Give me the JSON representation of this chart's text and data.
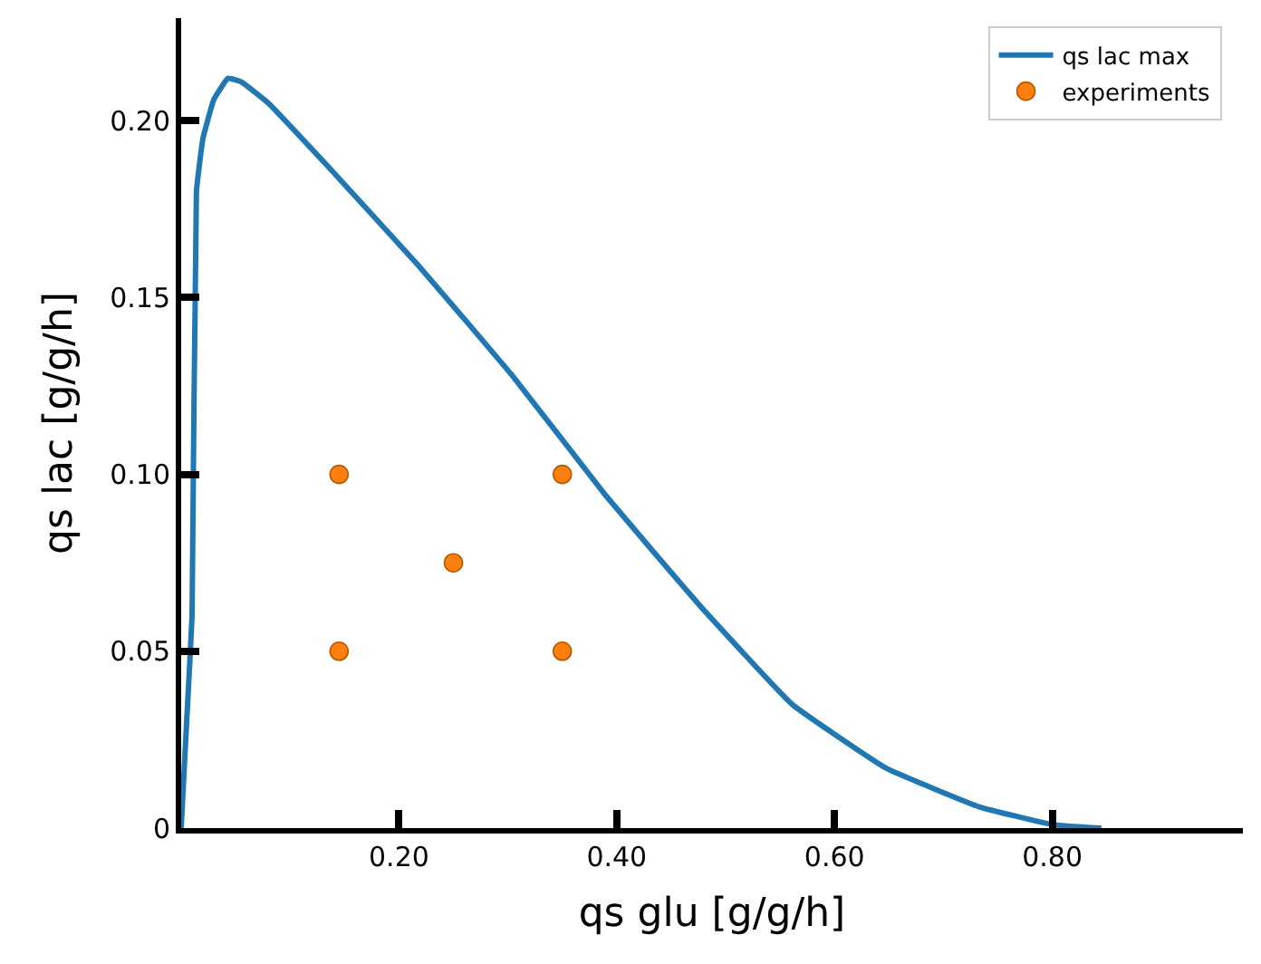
{
  "chart_data": {
    "type": "line",
    "xlabel": "qs glu [g/g/h]",
    "ylabel": "qs lac [g/g/h]",
    "xlim": [
      0,
      0.975
    ],
    "ylim": [
      0,
      0.229
    ],
    "xticks": [
      {
        "value": 0.2,
        "label": "0.20"
      },
      {
        "value": 0.4,
        "label": "0.40"
      },
      {
        "value": 0.6,
        "label": "0.60"
      },
      {
        "value": 0.8,
        "label": "0.80"
      }
    ],
    "yticks": [
      {
        "value": 0,
        "label": "0"
      },
      {
        "value": 0.05,
        "label": "0.05"
      },
      {
        "value": 0.1,
        "label": "0.10"
      },
      {
        "value": 0.15,
        "label": "0.15"
      },
      {
        "value": 0.2,
        "label": "0.20"
      }
    ],
    "legend": "top right",
    "series": [
      {
        "name": "qs lac max",
        "color": "#1f77b4",
        "marker": "none",
        "line_style": "solid",
        "x": [
          0,
          0.005,
          0.01,
          0.014,
          0.02,
          0.03,
          0.043,
          0.055,
          0.08,
          0.132,
          0.218,
          0.304,
          0.39,
          0.476,
          0.561,
          0.647,
          0.733,
          0.8,
          0.845
        ],
        "values": [
          0,
          0.03,
          0.06,
          0.18,
          0.195,
          0.206,
          0.212,
          0.211,
          0.205,
          0.188,
          0.159,
          0.128,
          0.094,
          0.063,
          0.035,
          0.017,
          0.006,
          0.001,
          0
        ]
      },
      {
        "name": "experiments",
        "type": "scatter",
        "color": "#ff7f0e",
        "marker": "circle",
        "x": [
          0.145,
          0.145,
          0.25,
          0.35,
          0.35
        ],
        "values": [
          0.05,
          0.1,
          0.075,
          0.1,
          0.05
        ]
      }
    ]
  }
}
